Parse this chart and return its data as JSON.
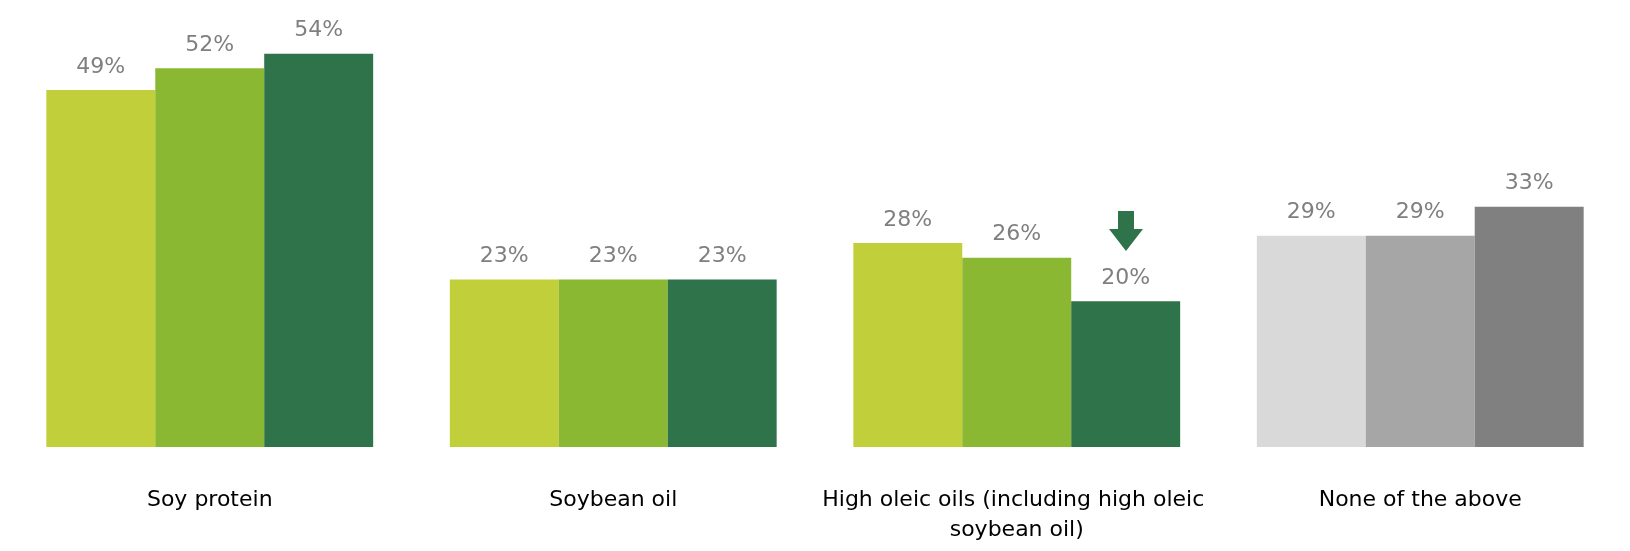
{
  "chart_data": {
    "type": "bar",
    "categories": [
      "Soy protein",
      "Soybean oil",
      "High oleic oils (including high oleic soybean oil)",
      "None of the above"
    ],
    "series": [
      {
        "colors": [
          "#c0cf3a",
          "#c0cf3a",
          "#c0cf3a",
          "#d9d9d9"
        ],
        "values": [
          49,
          23,
          28,
          29
        ],
        "value_labels": [
          "49%",
          "23%",
          "28%",
          "29%"
        ]
      },
      {
        "colors": [
          "#8ab833",
          "#8ab833",
          "#8ab833",
          "#a6a6a6"
        ],
        "values": [
          52,
          23,
          26,
          29
        ],
        "value_labels": [
          "52%",
          "23%",
          "26%",
          "29%"
        ]
      },
      {
        "colors": [
          "#2e7349",
          "#2e7349",
          "#2e7349",
          "#808080"
        ],
        "values": [
          54,
          23,
          20,
          33
        ],
        "value_labels": [
          "54%",
          "23%",
          "20%",
          "33%"
        ]
      }
    ]
  }
}
